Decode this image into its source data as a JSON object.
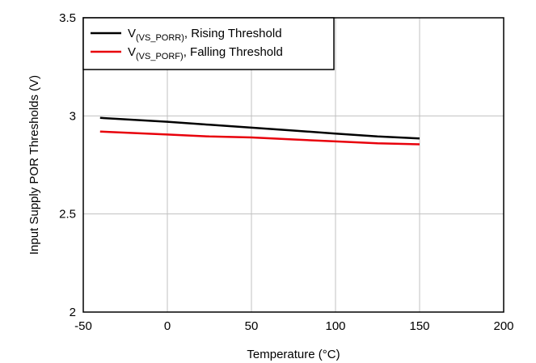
{
  "chart_data": {
    "type": "line",
    "title": "",
    "xlabel": "Temperature (°C)",
    "ylabel": "Input Supply POR Thresholds (V)",
    "xlim": [
      -50,
      200
    ],
    "ylim": [
      2,
      3.5
    ],
    "xticks": [
      -50,
      0,
      50,
      100,
      150,
      200
    ],
    "yticks": [
      2,
      2.5,
      3,
      3.5
    ],
    "xtick_labels": [
      "-50",
      "0",
      "50",
      "100",
      "150",
      "200"
    ],
    "ytick_labels": [
      "2",
      "2.5",
      "3",
      "3.5"
    ],
    "grid": true,
    "legend_position": "top-left",
    "series": [
      {
        "name": "V(VS_PORR), Rising Threshold",
        "name_main": "V",
        "name_sub": "(VS_PORR)",
        "name_rest": ", Rising Threshold",
        "color": "#000000",
        "x": [
          -40,
          0,
          25,
          50,
          75,
          100,
          125,
          150
        ],
        "y": [
          2.99,
          2.97,
          2.955,
          2.94,
          2.925,
          2.91,
          2.895,
          2.885
        ]
      },
      {
        "name": "V(VS_PORF), Falling Threshold",
        "name_main": "V",
        "name_sub": "(VS_PORF)",
        "name_rest": ", Falling Threshold",
        "color": "#e8000b",
        "x": [
          -40,
          0,
          25,
          50,
          75,
          100,
          125,
          150
        ],
        "y": [
          2.92,
          2.905,
          2.895,
          2.89,
          2.88,
          2.87,
          2.86,
          2.855
        ]
      }
    ]
  }
}
